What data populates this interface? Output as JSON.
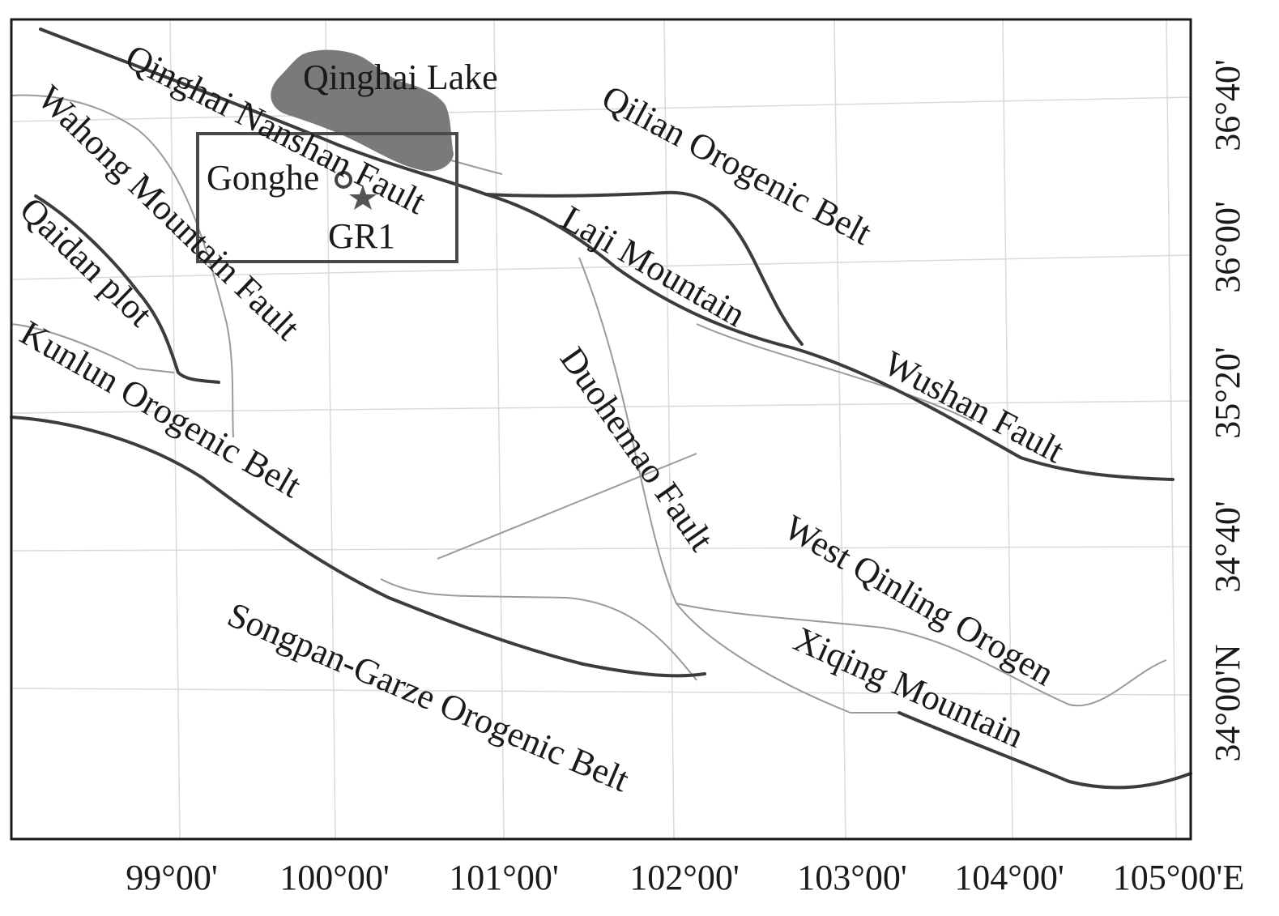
{
  "map": {
    "frame_color": "#1a1a1a",
    "lake_color": "#7a7a7a",
    "fault_color": "#3c3c3c",
    "minor_line_color": "#9a9a9a",
    "grid_color": "#d9d9d9",
    "labels": {
      "qinghai_lake": "Qinghai Lake",
      "qinghai_nanshan_fault": "Qinghai Nanshan Fault",
      "wahong_mountain_fault": "Wahong Mountain Fault",
      "qaidan_plot": "Qaidan plot",
      "kunlun_orogenic_belt": "Kunlun Orogenic Belt",
      "qilian_orogenic_belt": "Qilian Orogenic Belt",
      "laji_mountain": "Laji Mountain",
      "wushan_fault": "Wushan Fault",
      "duohemao_fault": "Duohemao Fault",
      "west_qinling_orogen": "West Qinling Orogen",
      "xiqing_mountain": "Xiqing Mountain",
      "songpan_garze_orogenic_belt": "Songpan-Garze Orogenic Belt",
      "gonghe": "Gonghe",
      "gr1": "GR1"
    },
    "longitude_ticks": [
      "99°00'",
      "100°00'",
      "101°00'",
      "102°00'",
      "103°00'",
      "104°00'",
      "105°00'E"
    ],
    "latitude_ticks": [
      "36°40'",
      "36°00'",
      "35°20'",
      "34°40'",
      "34°00'N"
    ],
    "markers": {
      "gonghe": "circle",
      "gr1": "star-icon"
    }
  }
}
